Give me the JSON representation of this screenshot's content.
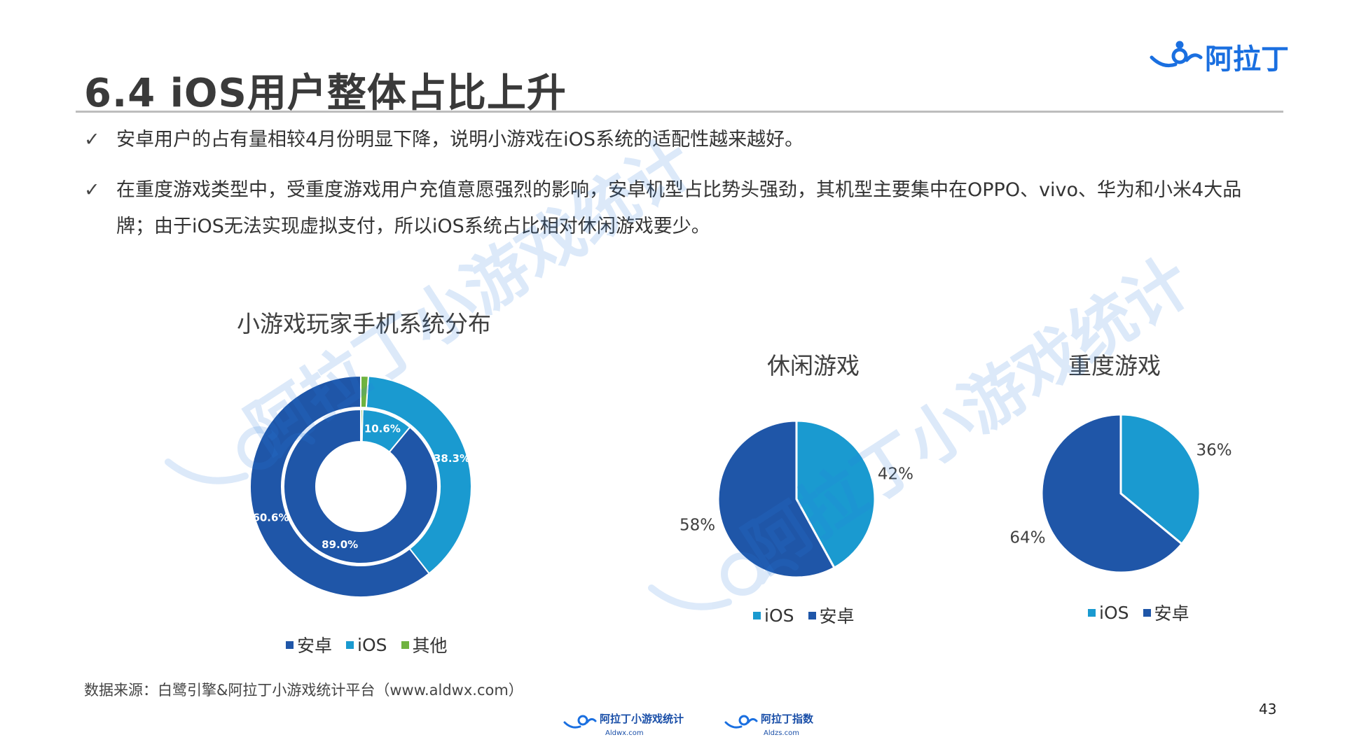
{
  "header": {
    "title": "6.4 iOS用户整体占比上升",
    "logo_text": "阿拉丁"
  },
  "bullets": [
    {
      "check": "✓",
      "text": "安卓用户的占有量相较4月份明显下降，说明小游戏在iOS系统的适配性越来越好。"
    },
    {
      "check": "✓",
      "text": "在重度游戏类型中，受重度游戏用户充值意愿强烈的影响，安卓机型占比势头强劲，其机型主要集中在OPPO、vivo、华为和小米4大品牌；由于iOS无法实现虚拟支付，所以iOS系统占比相对休闲游戏要少。"
    }
  ],
  "colors": {
    "android": "#1f56a8",
    "ios": "#1a9ad0",
    "other": "#6fb33f",
    "watermark": "#2b7de0"
  },
  "chart_data": [
    {
      "type": "donut",
      "title": "小游戏玩家手机系统分布",
      "rings": [
        {
          "labels": [
            "安卓",
            "iOS",
            "其他"
          ],
          "values": [
            60.6,
            38.3,
            1.1
          ],
          "data_labels": [
            "60.6%",
            "38.3%",
            ""
          ]
        },
        {
          "labels": [
            "安卓",
            "iOS",
            "其他"
          ],
          "values": [
            89.0,
            10.6,
            0.4
          ],
          "data_labels": [
            "89.0%",
            "10.6%",
            ""
          ]
        }
      ],
      "legend": [
        "安卓",
        "iOS",
        "其他"
      ],
      "legend_position": "bottom"
    },
    {
      "type": "pie",
      "title": "休闲游戏",
      "labels": [
        "iOS",
        "安卓"
      ],
      "values": [
        42,
        58
      ],
      "data_labels": [
        "42%",
        "58%"
      ],
      "legend": [
        "iOS",
        "安卓"
      ],
      "legend_position": "bottom"
    },
    {
      "type": "pie",
      "title": "重度游戏",
      "labels": [
        "iOS",
        "安卓"
      ],
      "values": [
        36,
        64
      ],
      "data_labels": [
        "36%",
        "64%"
      ],
      "legend": [
        "iOS",
        "安卓"
      ],
      "legend_position": "bottom"
    }
  ],
  "source": "数据来源：白鹭引擎&阿拉丁小游戏统计平台（www.aldwx.com）",
  "page_number": "43",
  "watermark_text": "阿拉丁小游戏统计",
  "footer_logos": [
    {
      "name": "阿拉丁小游戏统计",
      "url_text": "Aldwx.com"
    },
    {
      "name": "阿拉丁指数",
      "url_text": "Aldzs.com"
    }
  ]
}
